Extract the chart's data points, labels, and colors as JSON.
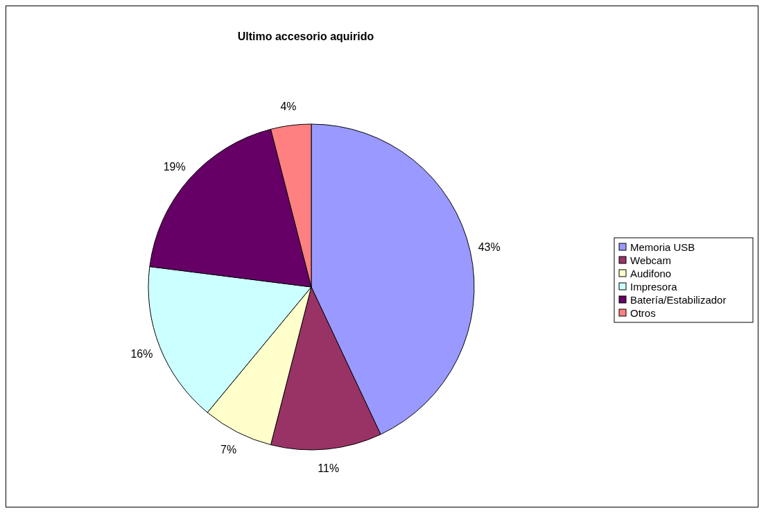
{
  "chart_data": {
    "type": "pie",
    "title": "Ultimo accesorio aquirido",
    "categories": [
      "Memoria USB",
      "Webcam",
      "Audifono",
      "Impresora",
      "Batería/Estabilizador",
      "Otros"
    ],
    "values": [
      43,
      11,
      7,
      16,
      19,
      4
    ],
    "colors": [
      "#9999ff",
      "#993366",
      "#ffffcc",
      "#ccffff",
      "#660066",
      "#ff8080"
    ],
    "value_labels": [
      "43%",
      "11%",
      "7%",
      "16%",
      "19%",
      "4%"
    ],
    "legend": "right"
  }
}
